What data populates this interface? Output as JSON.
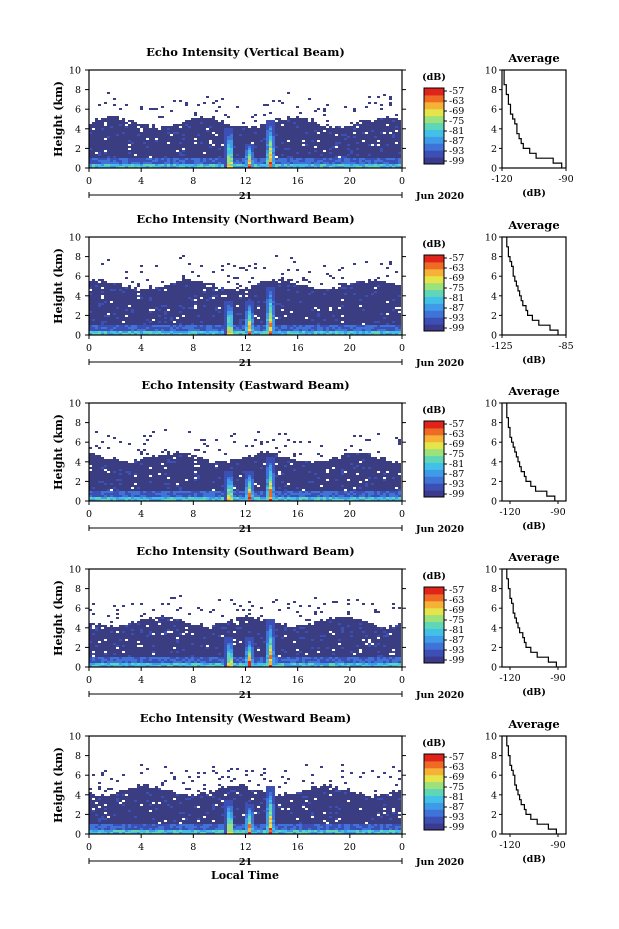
{
  "colors": {
    "scale": [
      "#3b3a8c",
      "#3c4fb4",
      "#3f73d8",
      "#3f9be8",
      "#42c0e8",
      "#5fd6b8",
      "#9be27a",
      "#e5e44a",
      "#f5b236",
      "#ef6a24",
      "#e0241c"
    ],
    "background_echo": "#3a3d82",
    "line": "#000000"
  },
  "x_axis": {
    "ticks": [
      "0",
      "4",
      "8",
      "12",
      "16",
      "20",
      "0"
    ],
    "day_label": "21",
    "month_label": "Jun 2020",
    "xlabel": "Local Time"
  },
  "y_axis": {
    "ticks": [
      "0",
      "2",
      "4",
      "6",
      "8",
      "10"
    ],
    "ylabel": "Height (km)",
    "ylim": [
      0,
      10
    ]
  },
  "colorbar": {
    "unit": "(dB)",
    "ticks": [
      "-57",
      "-63",
      "-69",
      "-75",
      "-81",
      "-87",
      "-93",
      "-99"
    ]
  },
  "average_panel": {
    "title": "Average",
    "xlabel": "(dB)"
  },
  "chart_data": [
    {
      "type": "heatmap",
      "title": "Echo Intensity (Vertical Beam)",
      "xlabel": "Local Time",
      "ylabel": "Height (km)",
      "x_range": [
        0,
        24
      ],
      "ylim": [
        0,
        10
      ],
      "z_range": [
        -99,
        -57
      ],
      "cloud_top_km": 4.5,
      "convective_cells": [
        {
          "x": 10.8,
          "top": 4.0
        },
        {
          "x": 12.3,
          "top": 2.5
        },
        {
          "x": 13.9,
          "top": 5.0
        }
      ],
      "average_profile": {
        "xlim": [
          -120,
          -90
        ],
        "xticks": [
          "-120",
          "-90"
        ],
        "height_km": [
          0,
          0.5,
          1,
          1.5,
          2,
          2.5,
          3,
          3.5,
          4,
          4.5,
          5,
          5.5,
          6,
          6.5,
          7,
          7.5,
          8,
          8.5,
          9,
          9.5
        ],
        "db": [
          -92,
          -96,
          -104,
          -107,
          -110,
          -111,
          -112,
          -113,
          -113,
          -114,
          -115,
          -116,
          -116,
          -117,
          -117,
          -118,
          -118,
          -119,
          -119,
          -119
        ]
      }
    },
    {
      "type": "heatmap",
      "title": "Echo Intensity (Northward Beam)",
      "xlabel": "Local Time",
      "ylabel": "Height (km)",
      "x_range": [
        0,
        24
      ],
      "ylim": [
        0,
        10
      ],
      "z_range": [
        -99,
        -57
      ],
      "cloud_top_km": 5.0,
      "convective_cells": [
        {
          "x": 10.8,
          "top": 3.5
        },
        {
          "x": 12.3,
          "top": 3.5
        },
        {
          "x": 13.9,
          "top": 5.0
        }
      ],
      "average_profile": {
        "xlim": [
          -125,
          -85
        ],
        "xticks": [
          "-125",
          "-85"
        ],
        "height_km": [
          0,
          0.5,
          1,
          1.5,
          2,
          2.5,
          3,
          3.5,
          4,
          4.5,
          5,
          5.5,
          6,
          6.5,
          7,
          7.5,
          8,
          8.5,
          9,
          9.5
        ],
        "db": [
          -90,
          -95,
          -102,
          -106,
          -109,
          -110,
          -112,
          -113,
          -114,
          -115,
          -116,
          -117,
          -118,
          -118,
          -119,
          -120,
          -121,
          -121,
          -122,
          -122
        ]
      }
    },
    {
      "type": "heatmap",
      "title": "Echo Intensity (Eastward Beam)",
      "xlabel": "Local Time",
      "ylabel": "Height (km)",
      "x_range": [
        0,
        24
      ],
      "ylim": [
        0,
        10
      ],
      "z_range": [
        -99,
        -57
      ],
      "cloud_top_km": 4.3,
      "convective_cells": [
        {
          "x": 10.8,
          "top": 3.0
        },
        {
          "x": 12.3,
          "top": 3.0
        },
        {
          "x": 13.9,
          "top": 4.5
        }
      ],
      "average_profile": {
        "xlim": [
          -125,
          -85
        ],
        "xticks": [
          "-120",
          "-90"
        ],
        "height_km": [
          0,
          0.5,
          1,
          1.5,
          2,
          2.5,
          3,
          3.5,
          4,
          4.5,
          5,
          5.5,
          6,
          6.5,
          7,
          7.5,
          8,
          8.5,
          9,
          9.5
        ],
        "db": [
          -92,
          -97,
          -104,
          -107,
          -110,
          -111,
          -113,
          -114,
          -115,
          -116,
          -117,
          -118,
          -119,
          -120,
          -120,
          -121,
          -121,
          -122,
          -122,
          -122
        ]
      }
    },
    {
      "type": "heatmap",
      "title": "Echo Intensity (Southward Beam)",
      "xlabel": "Local Time",
      "ylabel": "Height (km)",
      "x_range": [
        0,
        24
      ],
      "ylim": [
        0,
        10
      ],
      "z_range": [
        -99,
        -57
      ],
      "cloud_top_km": 4.5,
      "convective_cells": [
        {
          "x": 10.8,
          "top": 3.0
        },
        {
          "x": 12.3,
          "top": 3.0
        },
        {
          "x": 13.9,
          "top": 4.8
        }
      ],
      "average_profile": {
        "xlim": [
          -125,
          -85
        ],
        "xticks": [
          "-120",
          "-90"
        ],
        "height_km": [
          0,
          0.5,
          1,
          1.5,
          2,
          2.5,
          3,
          3.5,
          4,
          4.5,
          5,
          5.5,
          6,
          6.5,
          7,
          7.5,
          8,
          8.5,
          9,
          9.5
        ],
        "db": [
          -91,
          -96,
          -103,
          -107,
          -110,
          -111,
          -112,
          -114,
          -115,
          -116,
          -117,
          -118,
          -118,
          -119,
          -120,
          -120,
          -121,
          -121,
          -122,
          -122
        ]
      }
    },
    {
      "type": "heatmap",
      "title": "Echo Intensity (Westward Beam)",
      "xlabel": "Local Time",
      "ylabel": "Height (km)",
      "x_range": [
        0,
        24
      ],
      "ylim": [
        0,
        10
      ],
      "z_range": [
        -99,
        -57
      ],
      "cloud_top_km": 4.3,
      "convective_cells": [
        {
          "x": 10.8,
          "top": 3.5
        },
        {
          "x": 12.3,
          "top": 3.0
        },
        {
          "x": 13.9,
          "top": 4.8
        }
      ],
      "average_profile": {
        "xlim": [
          -125,
          -85
        ],
        "xticks": [
          "-120",
          "-90"
        ],
        "height_km": [
          0,
          0.5,
          1,
          1.5,
          2,
          2.5,
          3,
          3.5,
          4,
          4.5,
          5,
          5.5,
          6,
          6.5,
          7,
          7.5,
          8,
          8.5,
          9,
          9.5
        ],
        "db": [
          -91,
          -96,
          -103,
          -107,
          -110,
          -111,
          -113,
          -114,
          -115,
          -116,
          -117,
          -117,
          -118,
          -119,
          -120,
          -120,
          -121,
          -121,
          -122,
          -122
        ]
      }
    }
  ]
}
